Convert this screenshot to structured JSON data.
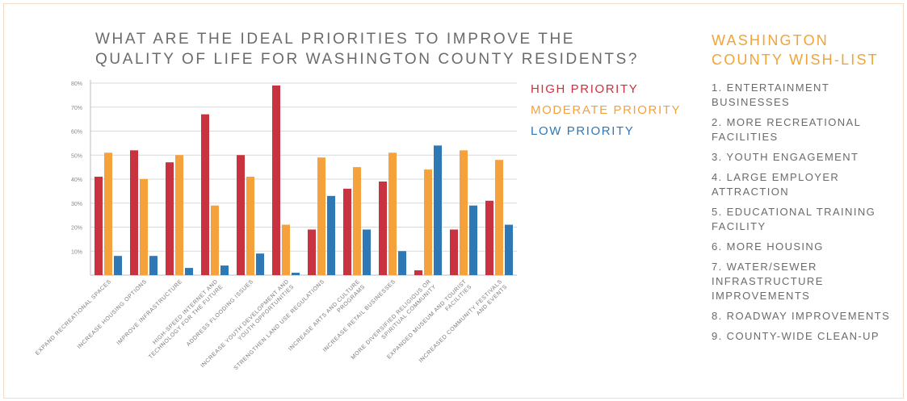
{
  "title": "WHAT ARE THE IDEAL PRIORITIES TO IMPROVE THE QUALITY OF LIFE FOR WASHINGTON COUNTY RESIDENTS?",
  "colors": {
    "high": "#c9323f",
    "moderate": "#f5a13c",
    "low": "#2f78b6",
    "axis": "#bdbdbd",
    "text": "#6b6b6b",
    "accent": "#f0a43a"
  },
  "legend": [
    {
      "label": "HIGH PRIORITY",
      "color": "#c9323f"
    },
    {
      "label": "MODERATE PRIORITY",
      "color": "#f5a13c"
    },
    {
      "label": "LOW PRIORITY",
      "color": "#2f78b6"
    }
  ],
  "wishlist": {
    "title": "WASHINGTON COUNTY WISH-LIST",
    "items": [
      "1. ENTERTAINMENT BUSINESSES",
      "2. MORE RECREATIONAL FACILITIES",
      "3. YOUTH ENGAGEMENT",
      "4. LARGE EMPLOYER ATTRACTION",
      "5. EDUCATIONAL TRAINING FACILITY",
      "6. MORE HOUSING",
      "7. WATER/SEWER INFRASTRUCTURE IMPROVEMENTS",
      "8. ROADWAY IMPROVEMENTS",
      "9. COUNTY-WIDE CLEAN-UP"
    ]
  },
  "chart_data": {
    "type": "bar",
    "title": "WHAT ARE THE IDEAL PRIORITIES TO IMPROVE THE QUALITY OF LIFE FOR WASHINGTON COUNTY RESIDENTS?",
    "categories": [
      "EXPAND RECREATIONAL SPACES",
      "INCREASE HOUSING OPTIONS",
      "IMPROVE INFRASTRUCTURE",
      "HIGH-SPEED INTERNET AND TECHNOLOGY FOR THE FUTURE",
      "ADDRESS FLOODING ISSUES",
      "INCREASE YOUTH DEVELOPMENT AND YOUTH OPPORTUNITIES",
      "STRENGTHEN LAND USE REGULATIONS",
      "INCREASE ARTS AND CULTURE PROGRAMS",
      "INCREASE RETAIL BUSINESSES",
      "MORE DIVERSIFIED RELIGIOUS OR SPIRITUAL COMMUNITY",
      "EXPANDED MUSEUM AND TOURIST FACILITIES",
      "INCREASED COMMUNITY FESTIVALS AND EVENTS"
    ],
    "category_lines": [
      [
        "EXPAND RECREATIONAL SPACES"
      ],
      [
        "INCREASE HOUSING OPTIONS"
      ],
      [
        "IMPROVE INFRASTRUCTURE"
      ],
      [
        "HIGH-SPEED INTERNET AND",
        "TECHNOLOGY FOR THE FUTURE"
      ],
      [
        "ADDRESS FLOODING ISSUES"
      ],
      [
        "INCREASE YOUTH DEVELOPMENT AND",
        "YOUTH OPPORTUNITIES"
      ],
      [
        "STRENGTHEN LAND USE REGULATIONS"
      ],
      [
        "INCREASE ARTS AND CULTURE",
        "PROGRAMS"
      ],
      [
        "INCREASE RETAIL BUSINESSES"
      ],
      [
        "MORE DIVERSIFIED RELIGIOUS OR",
        "SPIRITUAL COMMUNITY"
      ],
      [
        "EXPANDED MUSEUM AND TOURIST",
        "FACILITIES"
      ],
      [
        "INCREASED COMMUNITY FESTIVALS",
        "AND EVENTS"
      ]
    ],
    "series": [
      {
        "name": "HIGH PRIORITY",
        "values": [
          41,
          52,
          47,
          67,
          50,
          79,
          19,
          36,
          39,
          2,
          19,
          31
        ]
      },
      {
        "name": "MODERATE PRIORITY",
        "values": [
          51,
          40,
          50,
          29,
          41,
          21,
          49,
          45,
          51,
          44,
          52,
          48
        ]
      },
      {
        "name": "LOW PRIORITY",
        "values": [
          8,
          8,
          3,
          4,
          9,
          1,
          33,
          19,
          10,
          54,
          29,
          21
        ]
      }
    ],
    "yticks": [
      "80%",
      "70%",
      "60%",
      "50%",
      "40%",
      "30%",
      "20%",
      "10%"
    ],
    "ytick_values": [
      80,
      70,
      60,
      50,
      40,
      30,
      20,
      10
    ],
    "ylim": [
      0,
      80
    ],
    "xlabel": "",
    "ylabel": "",
    "grid": true,
    "legend_position": "right"
  }
}
